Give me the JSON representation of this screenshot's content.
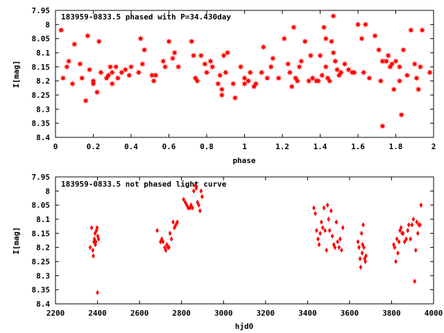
{
  "chart_data": [
    {
      "type": "scatter",
      "title": "183959-0833.5 phased with P=34.430day",
      "xlabel": "phase",
      "ylabel": "I[mag]",
      "xlim": [
        0,
        2
      ],
      "ylim": [
        8.4,
        7.95
      ],
      "y_inverted": true,
      "marker_color": "#ff0000",
      "marker": "star",
      "xticks": [
        0,
        0.2,
        0.4,
        0.6,
        0.8,
        1,
        1.2,
        1.4,
        1.6,
        1.8,
        2
      ],
      "xtick_labels": [
        "0",
        "0.2",
        "0.4",
        "0.6",
        "0.8",
        "1",
        "1.2",
        "1.4",
        "1.6",
        "1.8",
        "2"
      ],
      "yticks": [
        7.95,
        8,
        8.05,
        8.1,
        8.15,
        8.2,
        8.25,
        8.3,
        8.35,
        8.4
      ],
      "ytick_labels": [
        "7.95",
        "8",
        "8.05",
        "8.1",
        "8.15",
        "8.2",
        "8.25",
        "8.3",
        "8.35",
        "8.4"
      ],
      "x": [
        0.03,
        0.04,
        0.06,
        0.07,
        0.09,
        0.1,
        0.13,
        0.14,
        0.16,
        0.17,
        0.18,
        0.2,
        0.2,
        0.22,
        0.23,
        0.24,
        0.27,
        0.28,
        0.29,
        0.3,
        0.3,
        0.32,
        0.33,
        0.35,
        0.37,
        0.39,
        0.4,
        0.44,
        0.45,
        0.46,
        0.47,
        0.51,
        0.52,
        0.53,
        0.57,
        0.58,
        0.6,
        0.62,
        0.63,
        0.65,
        0.72,
        0.73,
        0.74,
        0.75,
        0.77,
        0.79,
        0.8,
        0.82,
        0.83,
        0.86,
        0.87,
        0.88,
        0.88,
        0.89,
        0.9,
        0.91,
        0.94,
        0.95,
        0.98,
        1.0,
        1.0,
        1.02,
        1.03,
        1.05,
        1.06,
        1.09,
        1.1,
        1.12,
        1.14,
        1.15,
        1.18,
        1.21,
        1.23,
        1.24,
        1.25,
        1.26,
        1.27,
        1.28,
        1.29,
        1.3,
        1.32,
        1.34,
        1.35,
        1.36,
        1.38,
        1.39,
        1.4,
        1.41,
        1.42,
        1.43,
        1.43,
        1.44,
        1.45,
        1.46,
        1.47,
        1.47,
        1.48,
        1.49,
        1.5,
        1.51,
        1.53,
        1.55,
        1.57,
        1.58,
        1.6,
        1.62,
        1.63,
        1.64,
        1.66,
        1.69,
        1.71,
        1.72,
        1.73,
        1.73,
        1.75,
        1.76,
        1.77,
        1.78,
        1.79,
        1.8,
        1.82,
        1.82,
        1.83,
        1.84,
        1.86,
        1.88,
        1.9,
        1.91,
        1.92,
        1.93,
        1.94,
        1.98
      ],
      "y": [
        8.02,
        8.19,
        8.15,
        8.13,
        8.21,
        8.07,
        8.14,
        8.19,
        8.27,
        8.04,
        8.16,
        8.2,
        8.21,
        8.24,
        8.06,
        8.17,
        8.19,
        8.18,
        8.15,
        8.21,
        8.17,
        8.15,
        8.19,
        8.17,
        8.16,
        8.18,
        8.15,
        8.17,
        8.05,
        8.14,
        8.09,
        8.18,
        8.2,
        8.18,
        8.13,
        8.15,
        8.06,
        8.12,
        8.1,
        8.15,
        8.06,
        8.11,
        8.19,
        8.2,
        8.11,
        8.14,
        8.17,
        8.13,
        8.15,
        8.21,
        8.18,
        8.23,
        8.25,
        8.11,
        8.17,
        8.1,
        8.21,
        8.26,
        8.15,
        8.19,
        8.21,
        8.2,
        8.17,
        8.22,
        8.21,
        8.17,
        8.08,
        8.19,
        8.15,
        8.12,
        8.19,
        8.05,
        8.14,
        8.17,
        8.22,
        8.01,
        8.19,
        8.2,
        8.15,
        8.13,
        8.06,
        8.2,
        8.11,
        8.19,
        8.2,
        8.2,
        8.11,
        8.18,
        8.01,
        8.05,
        8.15,
        8.19,
        8.2,
        8.06,
        8.1,
        7.97,
        8.13,
        8.16,
        8.18,
        8.17,
        8.14,
        8.16,
        8.17,
        8.17,
        8.0,
        8.05,
        8.17,
        8.0,
        8.19,
        8.04,
        8.09,
        8.2,
        8.13,
        8.36,
        8.13,
        8.11,
        8.15,
        8.14,
        8.23,
        8.13,
        8.15,
        8.2,
        8.32,
        8.09,
        8.18,
        8.02,
        8.14,
        8.19,
        8.23,
        8.15,
        8.02,
        8.17
      ]
    },
    {
      "type": "scatter",
      "title": "183959-0833.5 not phased light curve",
      "xlabel": "hjd0",
      "ylabel": "I[mag]",
      "xlim": [
        2200,
        4000
      ],
      "ylim": [
        8.4,
        7.95
      ],
      "y_inverted": true,
      "marker_color": "#ff0000",
      "marker": "diamond",
      "xticks": [
        2200,
        2400,
        2600,
        2800,
        3000,
        3200,
        3400,
        3600,
        3800,
        4000
      ],
      "xtick_labels": [
        "2200",
        "2400",
        "2600",
        "2800",
        "3000",
        "3200",
        "3400",
        "3600",
        "3800",
        "4000"
      ],
      "yticks": [
        7.95,
        8,
        8.05,
        8.1,
        8.15,
        8.2,
        8.25,
        8.3,
        8.35,
        8.4
      ],
      "ytick_labels": [
        "7.95",
        "8",
        "8.05",
        "8.1",
        "8.15",
        "8.2",
        "8.25",
        "8.3",
        "8.35",
        "8.4"
      ],
      "x": [
        2365,
        2372,
        2378,
        2380,
        2383,
        2385,
        2388,
        2390,
        2392,
        2395,
        2398,
        2400,
        2401,
        2405,
        2684,
        2700,
        2706,
        2712,
        2720,
        2725,
        2730,
        2735,
        2740,
        2745,
        2752,
        2760,
        2766,
        2773,
        2780,
        2810,
        2818,
        2825,
        2832,
        2840,
        2845,
        2852,
        2858,
        2865,
        2870,
        2876,
        2882,
        2888,
        2893,
        2898,
        3430,
        3437,
        3443,
        3450,
        3455,
        3460,
        3466,
        3472,
        3478,
        3483,
        3490,
        3495,
        3500,
        3505,
        3512,
        3518,
        3525,
        3530,
        3537,
        3543,
        3550,
        3555,
        3562,
        3568,
        3640,
        3645,
        3650,
        3653,
        3657,
        3660,
        3662,
        3665,
        3668,
        3672,
        3675,
        3678,
        3810,
        3815,
        3820,
        3825,
        3830,
        3835,
        3840,
        3845,
        3850,
        3855,
        3862,
        3870,
        3877,
        3882,
        3890,
        3897,
        3904,
        3910,
        3915,
        3920,
        3925,
        3930,
        3935,
        3940
      ],
      "y": [
        8.2,
        8.13,
        8.21,
        8.23,
        8.18,
        8.17,
        8.15,
        8.19,
        8.18,
        8.14,
        8.13,
        8.36,
        8.16,
        8.17,
        8.14,
        8.18,
        8.17,
        8.18,
        8.2,
        8.21,
        8.19,
        8.2,
        8.2,
        8.15,
        8.17,
        8.11,
        8.13,
        8.12,
        8.11,
        8.03,
        8.04,
        8.05,
        8.06,
        8.06,
        8.05,
        8.06,
        8.0,
        7.98,
        7.99,
        8.04,
        8.05,
        8.07,
        8.0,
        8.02,
        8.06,
        8.08,
        8.14,
        8.17,
        8.19,
        8.15,
        8.11,
        8.13,
        8.06,
        8.14,
        8.21,
        8.05,
        8.1,
        8.14,
        8.07,
        8.16,
        8.19,
        8.2,
        8.11,
        8.18,
        8.2,
        8.17,
        8.21,
        8.13,
        8.18,
        8.2,
        8.24,
        8.27,
        8.15,
        8.22,
        8.19,
        8.12,
        8.2,
        8.24,
        8.25,
        8.23,
        8.19,
        8.2,
        8.25,
        8.17,
        8.22,
        8.18,
        8.14,
        8.13,
        8.15,
        8.15,
        8.18,
        8.17,
        8.14,
        8.12,
        8.17,
        8.12,
        8.1,
        8.32,
        8.21,
        8.11,
        8.15,
        8.12,
        8.12,
        8.05
      ]
    }
  ]
}
